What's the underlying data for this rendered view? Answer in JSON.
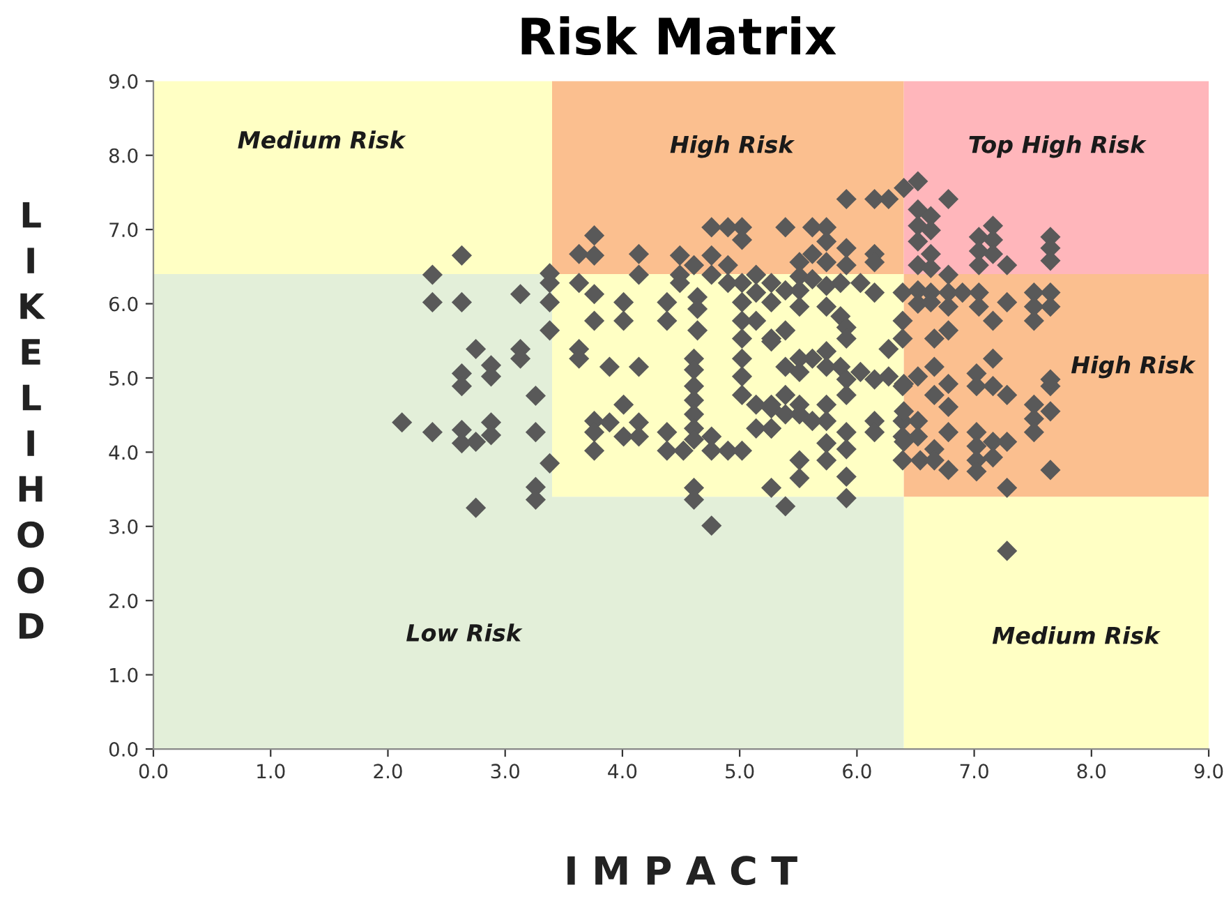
{
  "chart_data": {
    "type": "scatter",
    "title": "Risk Matrix",
    "xlabel": "I M P A C T",
    "ylabel": "LIKELIHOOD",
    "xlim": [
      0,
      9
    ],
    "ylim": [
      0,
      9
    ],
    "xticks": [
      {
        "value": 0,
        "label": "0.0"
      },
      {
        "value": 1,
        "label": "1.0"
      },
      {
        "value": 2,
        "label": "2.0"
      },
      {
        "value": 3,
        "label": "3.0"
      },
      {
        "value": 4,
        "label": "4.0"
      },
      {
        "value": 5,
        "label": "5.0"
      },
      {
        "value": 6,
        "label": "6.0"
      },
      {
        "value": 7,
        "label": "7.0"
      },
      {
        "value": 8,
        "label": "8.0"
      },
      {
        "value": 9,
        "label": "9.0"
      }
    ],
    "yticks": [
      {
        "value": 0,
        "label": "0.0"
      },
      {
        "value": 1,
        "label": "1.0"
      },
      {
        "value": 2,
        "label": "2.0"
      },
      {
        "value": 3,
        "label": "3.0"
      },
      {
        "value": 4,
        "label": "4.0"
      },
      {
        "value": 5,
        "label": "5.0"
      },
      {
        "value": 6,
        "label": "6.0"
      },
      {
        "value": 7,
        "label": "7.0"
      },
      {
        "value": 8,
        "label": "8.0"
      },
      {
        "value": 9,
        "label": "9.0"
      }
    ],
    "grid": false,
    "marker": "diamond",
    "annotations": [
      "Medium Risk",
      "High Risk",
      "Top High Risk",
      "High Risk",
      "Low Risk",
      "Medium Risk"
    ],
    "series": [
      {
        "color": "#595959",
        "x": [
          2.63,
          2.38,
          2.38,
          2.63,
          3.13,
          3.38,
          3.38,
          3.38,
          3.38,
          2.75,
          3.13,
          3.13,
          2.88,
          2.88,
          2.63,
          2.63,
          3.26,
          2.12,
          2.38,
          2.63,
          2.63,
          2.75,
          2.88,
          2.88,
          3.26,
          3.38,
          3.26,
          3.26,
          2.75,
          3.76,
          3.63,
          3.76,
          4.14,
          4.14,
          3.63,
          3.76,
          4.01,
          3.76,
          4.01,
          4.38,
          4.38,
          4.49,
          4.49,
          4.49,
          4.61,
          4.76,
          4.9,
          5.02,
          5.02,
          4.76,
          4.76,
          4.9,
          4.9,
          5.02,
          5.14,
          5.27,
          4.64,
          4.64,
          4.64,
          5.02,
          5.14,
          5.27,
          5.02,
          5.14,
          5.27,
          3.63,
          3.63,
          3.89,
          4.14,
          4.61,
          4.61,
          4.61,
          4.61,
          4.61,
          4.61,
          4.61,
          5.02,
          5.02,
          5.02,
          5.02,
          5.14,
          5.27,
          5.14,
          5.27,
          4.01,
          3.76,
          3.89,
          4.14,
          4.01,
          3.76,
          3.76,
          4.14,
          4.38,
          4.38,
          4.52,
          4.76,
          4.76,
          4.9,
          5.02,
          4.61,
          4.61,
          4.76,
          5.27,
          5.91,
          6.15,
          6.27,
          6.4,
          5.39,
          5.62,
          5.74,
          5.74,
          5.91,
          5.62,
          6.15,
          5.51,
          5.74,
          5.91,
          6.15,
          5.51,
          5.62,
          5.39,
          5.51,
          5.74,
          5.86,
          6.03,
          6.15,
          6.39,
          5.51,
          5.74,
          5.86,
          5.39,
          5.27,
          5.91,
          5.91,
          6.39,
          6.39,
          6.27,
          5.39,
          5.51,
          5.62,
          5.74,
          5.74,
          5.51,
          5.86,
          5.91,
          6.03,
          6.15,
          6.27,
          6.39,
          5.91,
          5.39,
          5.51,
          5.27,
          5.39,
          5.27,
          5.51,
          5.74,
          5.74,
          5.62,
          6.15,
          6.15,
          5.91,
          5.74,
          5.91,
          5.74,
          6.39,
          6.39,
          6.39,
          5.51,
          5.51,
          5.91,
          5.91,
          5.39,
          6.52,
          6.78,
          6.52,
          6.52,
          6.63,
          6.63,
          6.52,
          6.63,
          6.52,
          6.63,
          6.78,
          6.52,
          6.63,
          6.78,
          6.9,
          6.52,
          6.63,
          6.78,
          7.16,
          7.04,
          7.16,
          7.04,
          7.16,
          7.04,
          7.28,
          7.04,
          7.04,
          7.28,
          7.16,
          7.65,
          7.65,
          7.65,
          7.65,
          7.51,
          7.51,
          7.51,
          7.65,
          6.66,
          6.78,
          7.16,
          6.66,
          6.4,
          6.52,
          6.78,
          6.66,
          6.78,
          7.02,
          7.02,
          7.16,
          7.28,
          7.65,
          7.51,
          7.51,
          7.51,
          7.65,
          6.4,
          6.52,
          6.52,
          6.4,
          6.78,
          7.02,
          7.16,
          7.28,
          7.02,
          6.66,
          6.54,
          6.78,
          6.66,
          7.02,
          7.16,
          7.02,
          7.28,
          7.65,
          7.28,
          7.65
        ],
        "values": [
          6.65,
          6.39,
          6.02,
          6.02,
          6.13,
          6.41,
          6.28,
          6.02,
          5.64,
          5.39,
          5.39,
          5.26,
          5.17,
          5.02,
          5.06,
          4.89,
          4.76,
          4.4,
          4.27,
          4.3,
          4.12,
          4.14,
          4.4,
          4.23,
          4.27,
          3.85,
          3.53,
          3.36,
          3.25,
          6.92,
          6.67,
          6.65,
          6.67,
          6.39,
          6.28,
          6.13,
          6.02,
          5.77,
          5.77,
          6.02,
          5.77,
          6.65,
          6.39,
          6.28,
          6.52,
          7.03,
          7.03,
          7.03,
          6.86,
          6.65,
          6.39,
          6.52,
          6.28,
          6.28,
          6.39,
          6.28,
          6.09,
          5.93,
          5.64,
          6.02,
          6.15,
          6.02,
          5.77,
          5.77,
          5.53,
          5.39,
          5.26,
          5.15,
          5.15,
          5.26,
          5.11,
          4.89,
          4.7,
          4.51,
          4.32,
          4.17,
          5.53,
          5.26,
          5.02,
          4.77,
          4.64,
          4.64,
          4.32,
          4.32,
          4.64,
          4.42,
          4.4,
          4.4,
          4.21,
          4.27,
          4.02,
          4.21,
          4.27,
          4.02,
          4.02,
          4.21,
          4.02,
          4.02,
          4.02,
          3.52,
          3.36,
          3.01,
          3.52,
          7.41,
          7.41,
          7.41,
          7.56,
          7.03,
          7.03,
          7.03,
          6.84,
          6.75,
          6.67,
          6.67,
          6.56,
          6.56,
          6.52,
          6.56,
          6.37,
          6.33,
          6.18,
          6.18,
          6.24,
          6.28,
          6.28,
          6.15,
          6.15,
          5.96,
          5.96,
          5.83,
          5.64,
          5.49,
          5.68,
          5.53,
          5.77,
          5.53,
          5.39,
          5.15,
          5.26,
          5.26,
          5.36,
          5.15,
          5.08,
          5.15,
          4.98,
          5.08,
          4.98,
          5.02,
          4.89,
          4.77,
          4.77,
          4.64,
          4.59,
          4.51,
          4.32,
          4.51,
          4.64,
          4.42,
          4.42,
          4.42,
          4.27,
          4.27,
          4.12,
          4.04,
          3.89,
          4.42,
          4.21,
          3.89,
          3.89,
          3.65,
          3.67,
          3.38,
          3.27,
          7.65,
          7.41,
          7.27,
          7.05,
          7.18,
          6.99,
          6.84,
          6.67,
          6.52,
          6.48,
          6.39,
          6.18,
          6.15,
          6.15,
          6.15,
          6.0,
          6.02,
          5.96,
          7.05,
          6.9,
          6.86,
          6.71,
          6.67,
          6.52,
          6.52,
          6.15,
          5.96,
          6.02,
          5.77,
          6.9,
          6.75,
          6.58,
          6.15,
          6.15,
          5.96,
          5.77,
          5.96,
          5.53,
          5.64,
          5.26,
          5.15,
          4.92,
          5.02,
          4.92,
          4.77,
          4.61,
          5.06,
          4.89,
          4.89,
          4.77,
          4.89,
          4.64,
          4.45,
          4.27,
          4.55,
          4.55,
          4.42,
          4.21,
          4.14,
          4.27,
          4.27,
          4.14,
          4.14,
          4.08,
          4.04,
          3.89,
          3.76,
          3.89,
          3.89,
          3.93,
          3.74,
          3.52,
          3.76,
          2.67,
          4.98
        ]
      }
    ]
  }
}
